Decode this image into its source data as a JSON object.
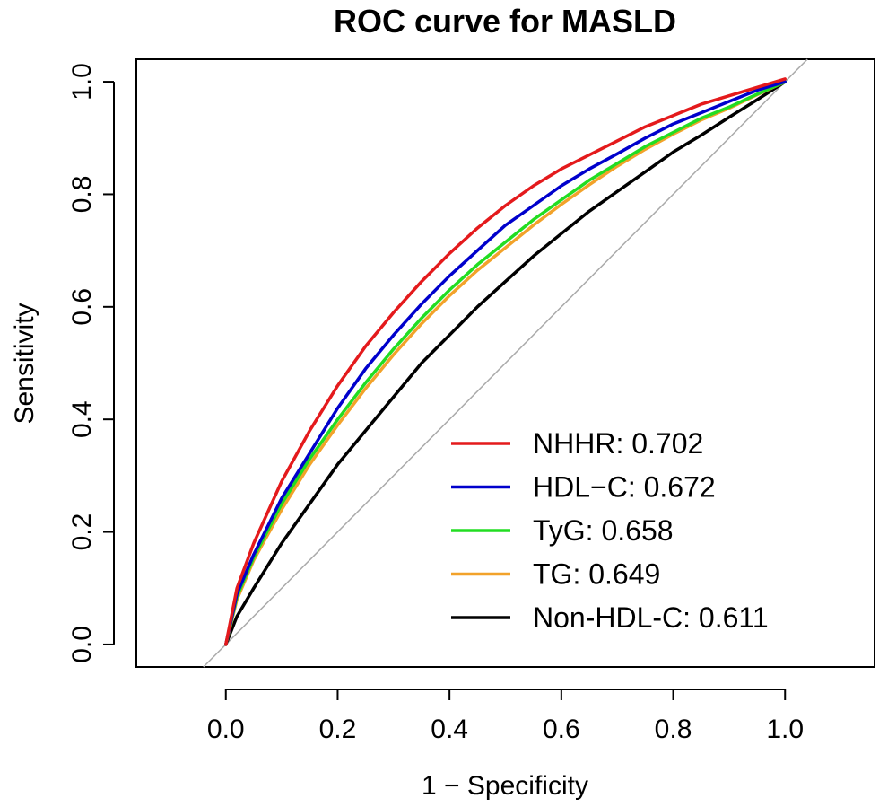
{
  "chart_data": {
    "type": "line",
    "title": "ROC curve for MASLD",
    "xlabel": "1 − Specificity",
    "ylabel": "Sensitivity",
    "xlim": [
      -0.16,
      1.16
    ],
    "ylim": [
      -0.04,
      1.04
    ],
    "x_ticks": [
      0.0,
      0.2,
      0.4,
      0.6,
      0.8,
      1.0
    ],
    "y_ticks": [
      0.0,
      0.2,
      0.4,
      0.6,
      0.8,
      1.0
    ],
    "x_tick_labels": [
      "0.0",
      "0.2",
      "0.4",
      "0.6",
      "0.8",
      "1.0"
    ],
    "y_tick_labels": [
      "0.0",
      "0.2",
      "0.4",
      "0.6",
      "0.8",
      "1.0"
    ],
    "grid": false,
    "legend_position": "bottom-right",
    "reference_line": {
      "x": [
        -0.04,
        1.04
      ],
      "y": [
        -0.04,
        1.04
      ],
      "color": "#aaaaaa"
    },
    "x": [
      0,
      0.02,
      0.05,
      0.1,
      0.15,
      0.2,
      0.25,
      0.3,
      0.35,
      0.4,
      0.45,
      0.5,
      0.55,
      0.6,
      0.65,
      0.7,
      0.75,
      0.8,
      0.85,
      0.9,
      0.95,
      1.0
    ],
    "series": [
      {
        "name": "NHHR",
        "auc": "0.702",
        "legend_label": "NHHR: 0.702",
        "color": "#e41a1c",
        "values": [
          0,
          0.1,
          0.18,
          0.29,
          0.38,
          0.46,
          0.53,
          0.59,
          0.645,
          0.695,
          0.74,
          0.78,
          0.815,
          0.845,
          0.87,
          0.895,
          0.92,
          0.94,
          0.96,
          0.975,
          0.99,
          1.005
        ]
      },
      {
        "name": "HDL-C",
        "auc": "0.672",
        "legend_label": "HDL−C: 0.672",
        "color": "#0000cc",
        "values": [
          0,
          0.09,
          0.16,
          0.26,
          0.34,
          0.42,
          0.49,
          0.55,
          0.605,
          0.655,
          0.7,
          0.745,
          0.78,
          0.815,
          0.845,
          0.872,
          0.9,
          0.925,
          0.945,
          0.965,
          0.985,
          1.0
        ]
      },
      {
        "name": "TyG",
        "auc": "0.658",
        "legend_label": "TyG: 0.658",
        "color": "#22dd22",
        "values": [
          0,
          0.085,
          0.155,
          0.25,
          0.33,
          0.4,
          0.465,
          0.525,
          0.58,
          0.63,
          0.675,
          0.715,
          0.755,
          0.79,
          0.825,
          0.855,
          0.885,
          0.91,
          0.935,
          0.955,
          0.978,
          1.0
        ]
      },
      {
        "name": "TG",
        "auc": "0.649",
        "legend_label": "TG: 0.649",
        "color": "#f2a22a",
        "values": [
          0,
          0.08,
          0.15,
          0.24,
          0.32,
          0.39,
          0.455,
          0.515,
          0.57,
          0.62,
          0.665,
          0.705,
          0.745,
          0.782,
          0.817,
          0.85,
          0.88,
          0.907,
          0.932,
          0.953,
          0.977,
          1.0
        ]
      },
      {
        "name": "Non-HDL-C",
        "auc": "0.611",
        "legend_label": "Non-HDL-C: 0.611",
        "color": "#000000",
        "values": [
          0,
          0.05,
          0.1,
          0.18,
          0.25,
          0.32,
          0.38,
          0.44,
          0.5,
          0.55,
          0.6,
          0.645,
          0.69,
          0.73,
          0.77,
          0.805,
          0.84,
          0.875,
          0.905,
          0.937,
          0.968,
          1.0
        ]
      }
    ]
  }
}
